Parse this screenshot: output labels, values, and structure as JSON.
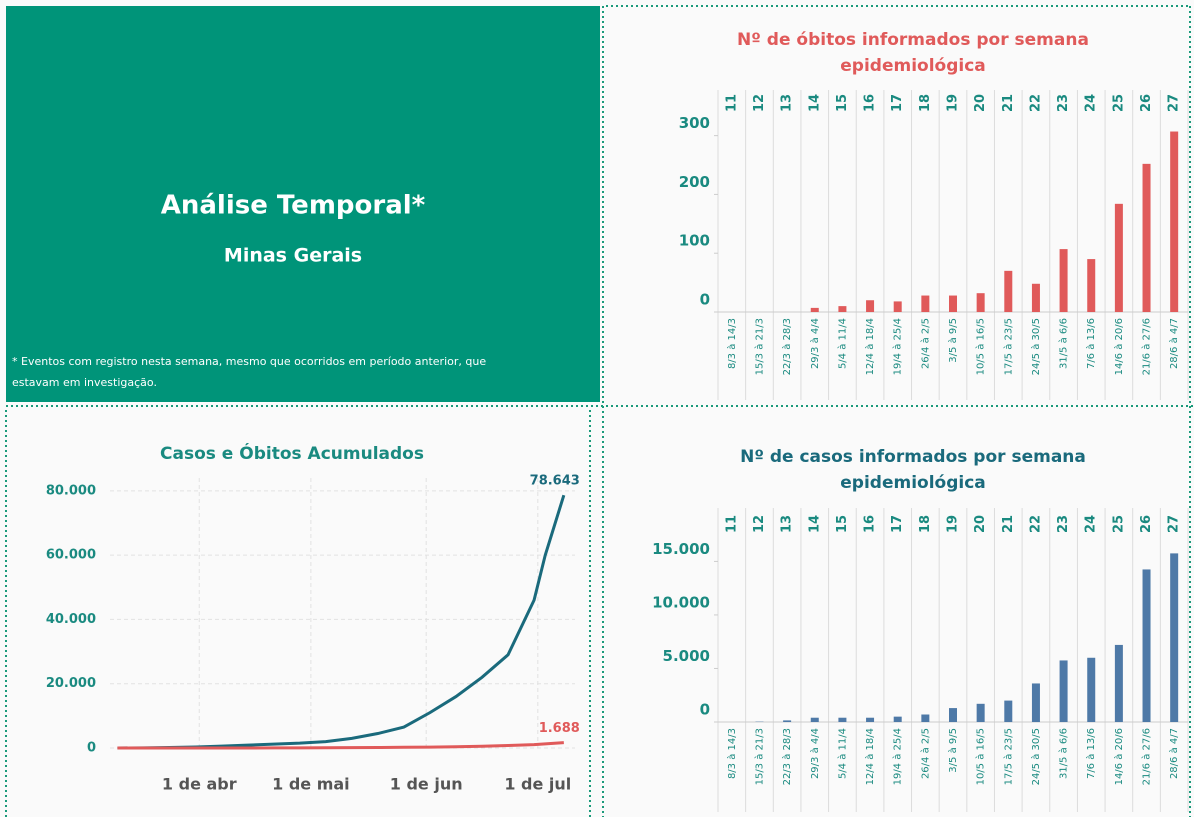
{
  "header": {
    "title": "Análise Temporal*",
    "subtitle": "Minas Gerais",
    "note": [
      "* Eventos com registro nesta semana, mesmo que ocorridos em período anterior, que",
      "estavam em investigação."
    ]
  },
  "chart_data": [
    {
      "type": "bar",
      "title": [
        "Nº de óbitos informados por semana",
        "epidemiológica"
      ],
      "title_color": "#e05a5a",
      "color": "#e05a5a",
      "categories": [
        "11",
        "12",
        "13",
        "14",
        "15",
        "16",
        "17",
        "18",
        "19",
        "20",
        "21",
        "22",
        "23",
        "24",
        "25",
        "26",
        "27"
      ],
      "ranges": [
        "8/3 à 14/3",
        "15/3 à 21/3",
        "22/3 à 28/3",
        "29/3 à 4/4",
        "5/4 à 11/4",
        "12/4 à 18/4",
        "19/4 à 25/4",
        "26/4 à 2/5",
        "3/5 à 9/5",
        "10/5 à 16/5",
        "17/5 à 23/5",
        "24/5 à 30/5",
        "31/5 à 6/6",
        "7/6 à 13/6",
        "14/6 à 20/6",
        "21/6 à 27/6",
        "28/6 à 4/7"
      ],
      "values": [
        0,
        0,
        0,
        7,
        10,
        20,
        18,
        28,
        28,
        32,
        70,
        48,
        107,
        90,
        184,
        252,
        307
      ],
      "ylim": [
        0,
        330
      ],
      "yticks": [
        0,
        100,
        200,
        300
      ]
    },
    {
      "type": "line",
      "title": "Casos e Óbitos Acumulados",
      "title_color": "#1a8a80",
      "x": [
        "10/3",
        "17/3",
        "24/3",
        "31/3",
        "7/4",
        "14/4",
        "21/4",
        "28/4",
        "5/5",
        "12/5",
        "19/5",
        "26/5",
        "2/6",
        "9/6",
        "16/6",
        "23/6",
        "30/6",
        "3/7",
        "8/7"
      ],
      "series": [
        {
          "color": "#1a6a7c",
          "values": [
            0,
            50,
            150,
            300,
            600,
            900,
            1200,
            1500,
            2000,
            3000,
            4500,
            6500,
            11000,
            16000,
            22000,
            29000,
            46000,
            60000,
            78643
          ],
          "value_labels": [
            null,
            null,
            null,
            null,
            null,
            null,
            null,
            null,
            null,
            null,
            null,
            null,
            null,
            null,
            null,
            null,
            null,
            null,
            "78.643"
          ]
        },
        {
          "color": "#e05a5a",
          "values": [
            0,
            0,
            1,
            3,
            8,
            15,
            25,
            45,
            70,
            110,
            160,
            230,
            290,
            390,
            540,
            760,
            1050,
            1300,
            1688
          ],
          "value_labels": [
            null,
            null,
            null,
            null,
            null,
            null,
            null,
            null,
            null,
            null,
            null,
            null,
            null,
            null,
            null,
            null,
            null,
            null,
            "1.688"
          ]
        }
      ],
      "xlim": [
        "8/3",
        "11/7"
      ],
      "xticks": [
        {
          "value": "1/4",
          "label": "1 de abr"
        },
        {
          "value": "1/5",
          "label": "1 de mai"
        },
        {
          "value": "1/6",
          "label": "1 de jun"
        },
        {
          "value": "1/7",
          "label": "1 de jul"
        }
      ],
      "ylim": [
        0,
        84000
      ],
      "yticks": [
        0,
        {
          "value": 20000,
          "label": "20.000"
        },
        {
          "value": 40000,
          "label": "40.000"
        },
        {
          "value": 60000,
          "label": "60.000"
        },
        {
          "value": 80000,
          "label": "80.000"
        }
      ],
      "grid": true
    },
    {
      "type": "bar",
      "title": [
        "Nº de casos informados por semana",
        "epidemiológica"
      ],
      "title_color": "#1a6a7c",
      "color": "#4e79a7",
      "categories": [
        "11",
        "12",
        "13",
        "14",
        "15",
        "16",
        "17",
        "18",
        "19",
        "20",
        "21",
        "22",
        "23",
        "24",
        "25",
        "26",
        "27"
      ],
      "ranges": [
        "8/3 à 14/3",
        "15/3 à 21/3",
        "22/3 à 28/3",
        "29/3 à 4/4",
        "5/4 à 11/4",
        "12/4 à 18/4",
        "19/4 à 25/4",
        "26/4 à 2/5",
        "3/5 à 9/5",
        "10/5 à 16/5",
        "17/5 à 23/5",
        "24/5 à 30/5",
        "31/5 à 6/6",
        "7/6 à 13/6",
        "14/6 à 20/6",
        "21/6 à 27/6",
        "28/6 à 4/7"
      ],
      "values": [
        0,
        30,
        150,
        400,
        400,
        400,
        500,
        700,
        1300,
        1700,
        2000,
        3600,
        5750,
        6000,
        7200,
        14250,
        15750
      ],
      "ylim": [
        0,
        17000
      ],
      "yticks": [
        0,
        {
          "value": 5000,
          "label": "5.000"
        },
        {
          "value": 10000,
          "label": "10.000"
        },
        {
          "value": 15000,
          "label": "15.000"
        }
      ]
    }
  ]
}
